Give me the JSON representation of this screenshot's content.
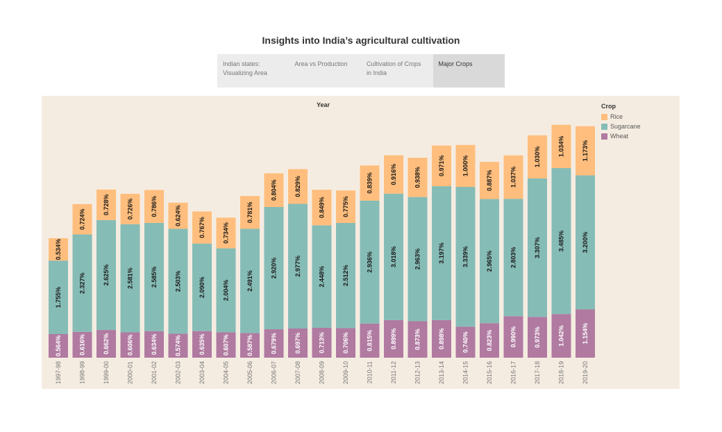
{
  "title": "Insights into India’s agricultural cultivation",
  "tabs": [
    {
      "label": "Indian states: Visualizing Area",
      "active": false
    },
    {
      "label": "Area vs Production",
      "active": false
    },
    {
      "label": "Cultivation of Crops in India",
      "active": false
    },
    {
      "label": "Major Crops",
      "active": true
    }
  ],
  "chart_data": {
    "type": "bar",
    "stacked": true,
    "title": "",
    "column_header": "Year",
    "legend_title": "Crop",
    "legend_position": "top-right",
    "categories": [
      "1997-98",
      "1998-99",
      "1999-00",
      "2000-01",
      "2001-02",
      "2002-03",
      "2003-04",
      "2004-05",
      "2005-06",
      "2006-07",
      "2007-08",
      "2008-09",
      "2009-10",
      "2010-11",
      "2011-12",
      "2012-13",
      "2013-14",
      "2014-15",
      "2015-16",
      "2016-17",
      "2017-18",
      "2018-19",
      "2019-20"
    ],
    "series": [
      {
        "name": "Wheat",
        "color": "#b07aa1",
        "values": [
          0.564,
          0.616,
          0.662,
          0.606,
          0.634,
          0.574,
          0.635,
          0.607,
          0.587,
          0.679,
          0.697,
          0.713,
          0.706,
          0.815,
          0.899,
          0.873,
          0.898,
          0.74,
          0.823,
          0.99,
          0.973,
          1.042,
          1.154
        ],
        "labels": [
          "0.564%",
          "0.616%",
          "0.662%",
          "0.606%",
          "0.634%",
          "0.574%",
          "0.635%",
          "0.607%",
          "0.587%",
          "0.679%",
          "0.697%",
          "0.713%",
          "0.706%",
          "0.815%",
          "0.899%",
          "0.873%",
          "0.898%",
          "0.740%",
          "0.823%",
          "0.990%",
          "0.973%",
          "1.042%",
          "1.154%"
        ]
      },
      {
        "name": "Sugarcane",
        "color": "#86bcb6",
        "values": [
          1.755,
          2.327,
          2.625,
          2.581,
          2.585,
          2.503,
          2.09,
          2.004,
          2.491,
          2.92,
          2.977,
          2.448,
          2.512,
          2.936,
          3.018,
          2.963,
          3.197,
          3.339,
          2.965,
          2.803,
          3.307,
          3.485,
          3.2
        ],
        "labels": [
          "1.755%",
          "2.327%",
          "2.625%",
          "2.581%",
          "2.585%",
          "2.503%",
          "2.090%",
          "2.004%",
          "2.491%",
          "2.920%",
          "2.977%",
          "2.448%",
          "2.512%",
          "2.936%",
          "3.018%",
          "2.963%",
          "3.197%",
          "3.339%",
          "2.965%",
          "2.803%",
          "3.307%",
          "3.485%",
          "3.200%"
        ]
      },
      {
        "name": "Rice",
        "color": "#ffbe7d",
        "values": [
          0.534,
          0.724,
          0.728,
          0.726,
          0.786,
          0.624,
          0.767,
          0.734,
          0.781,
          0.804,
          0.829,
          0.849,
          0.775,
          0.839,
          0.916,
          0.938,
          0.971,
          1.0,
          0.887,
          1.037,
          1.03,
          1.034,
          1.173
        ],
        "labels": [
          "0.534%",
          "0.724%",
          "0.728%",
          "0.726%",
          "0.786%",
          "0.624%",
          "0.767%",
          "0.734%",
          "0.781%",
          "0.804%",
          "0.829%",
          "0.849%",
          "0.775%",
          "0.839%",
          "0.916%",
          "0.938%",
          "0.971%",
          "1.000%",
          "0.887%",
          "1.037%",
          "1.030%",
          "1.034%",
          "1.173%"
        ]
      }
    ],
    "legend_order": [
      "Rice",
      "Sugarcane",
      "Wheat"
    ],
    "grid": false
  }
}
